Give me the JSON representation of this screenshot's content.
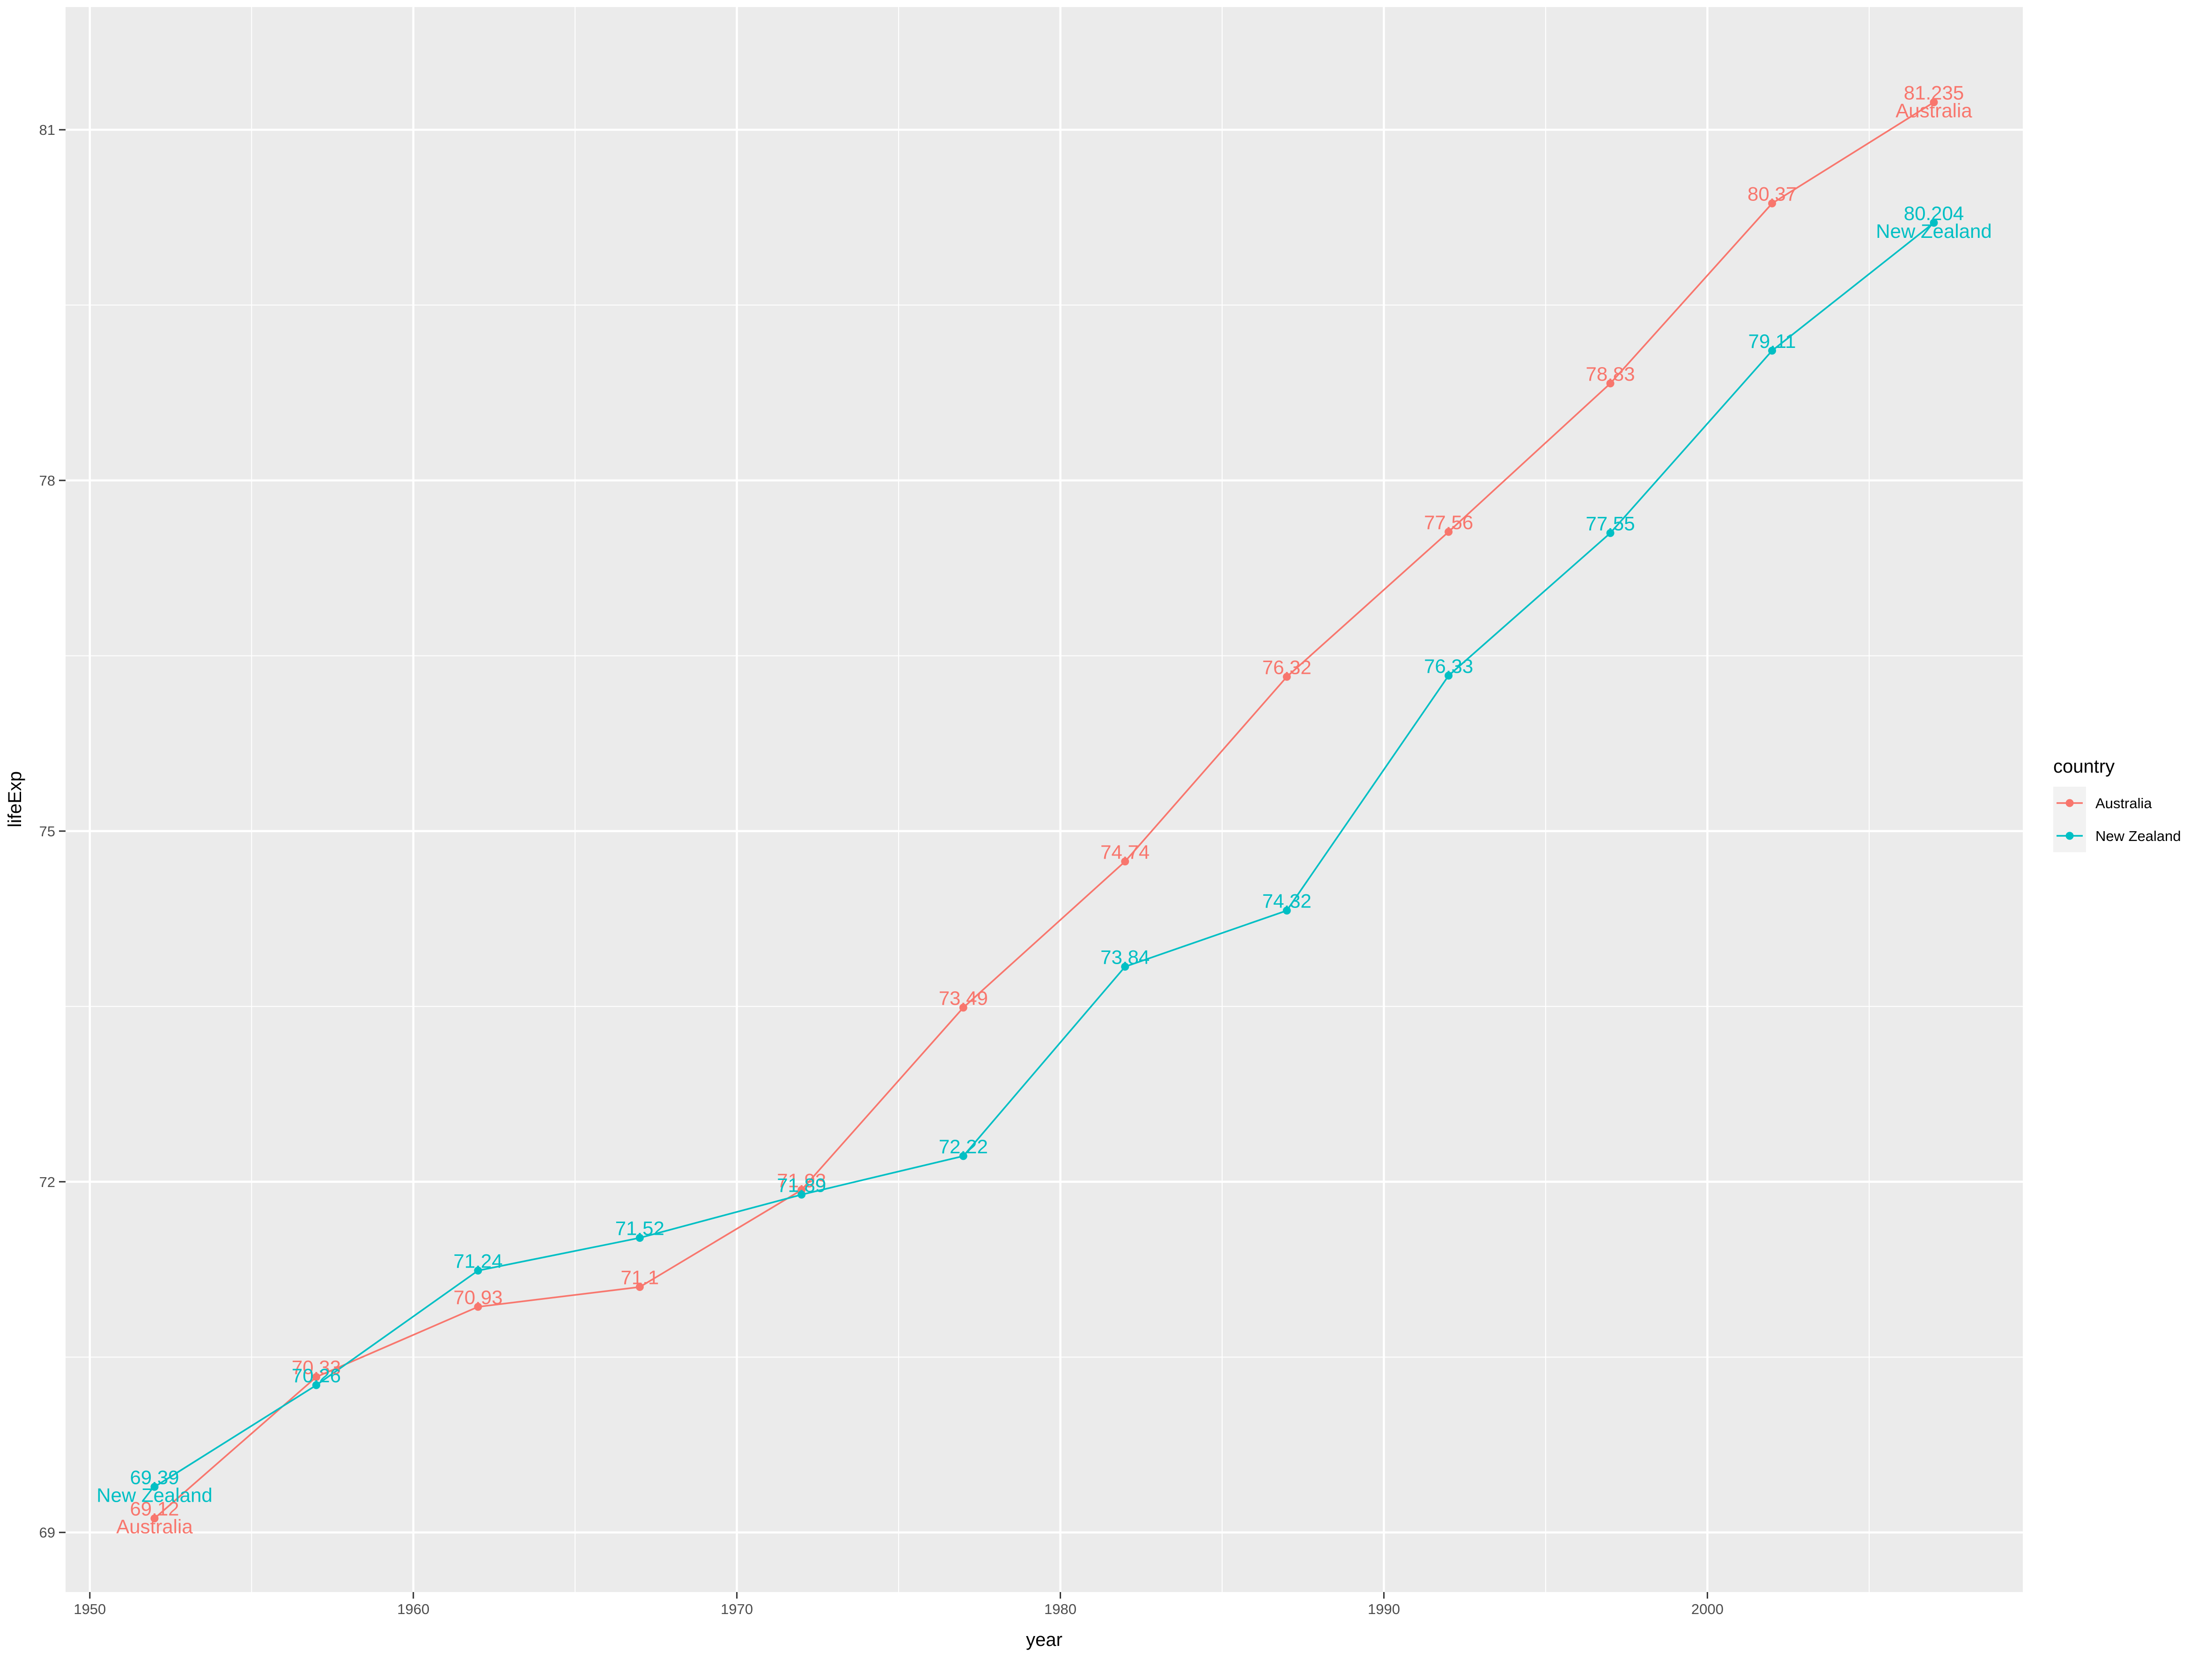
{
  "chart_data": {
    "type": "line",
    "title": "",
    "xlabel": "year",
    "ylabel": "lifeExp",
    "x": [
      1952,
      1957,
      1962,
      1967,
      1972,
      1977,
      1982,
      1987,
      1992,
      1997,
      2002,
      2007
    ],
    "xlim": [
      1949.25,
      2009.75
    ],
    "ylim": [
      68.49,
      82.05
    ],
    "x_ticks": [
      1950,
      1960,
      1970,
      1980,
      1990,
      2000
    ],
    "y_ticks": [
      69,
      72,
      75,
      78,
      81
    ],
    "grid": true,
    "legend": {
      "title": "country",
      "position": "right"
    },
    "series": [
      {
        "name": "Australia",
        "color": "#F8766D",
        "values": [
          69.12,
          70.33,
          70.93,
          71.1,
          71.93,
          73.49,
          74.74,
          76.32,
          77.56,
          78.83,
          80.37,
          81.235
        ],
        "labels": [
          "69.12",
          "70.33",
          "70.93",
          "71.1",
          "71.93",
          "73.49",
          "74.74",
          "76.32",
          "77.56",
          "78.83",
          "80.37",
          "81.235"
        ],
        "end_label": "Australia"
      },
      {
        "name": "New Zealand",
        "color": "#00BFC4",
        "values": [
          69.39,
          70.26,
          71.24,
          71.52,
          71.89,
          72.22,
          73.84,
          74.32,
          76.33,
          77.55,
          79.11,
          80.204
        ],
        "labels": [
          "69.39",
          "70.26",
          "71.24",
          "71.52",
          "71.89",
          "72.22",
          "73.84",
          "74.32",
          "76.33",
          "77.55",
          "79.11",
          "80.204"
        ],
        "end_label": "New Zealand"
      }
    ]
  }
}
